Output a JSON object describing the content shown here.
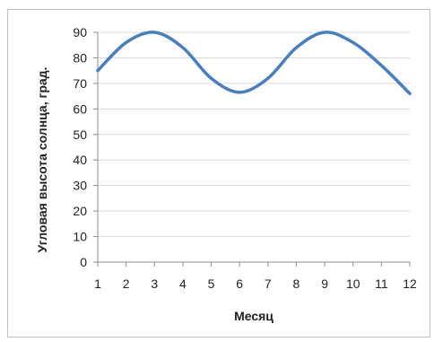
{
  "chart_data": {
    "type": "line",
    "title": "",
    "xlabel": "Месяц",
    "ylabel": "Угловая высота солнца, град.",
    "x": [
      1,
      2,
      3,
      4,
      5,
      6,
      7,
      8,
      9,
      10,
      11,
      12
    ],
    "x_ticks": [
      "1",
      "2",
      "3",
      "4",
      "5",
      "6",
      "7",
      "8",
      "9",
      "10",
      "11",
      "12"
    ],
    "y_ticks": [
      "0",
      "10",
      "20",
      "30",
      "40",
      "50",
      "60",
      "70",
      "80",
      "90"
    ],
    "ylim": [
      0,
      90
    ],
    "xlim": [
      1,
      12
    ],
    "grid": "horizontal",
    "legend": "none",
    "series": [
      {
        "values": [
          75,
          86,
          90,
          84,
          72,
          66.5,
          72,
          84,
          90,
          86,
          77,
          66
        ],
        "color": "#4a7ebb"
      }
    ]
  }
}
